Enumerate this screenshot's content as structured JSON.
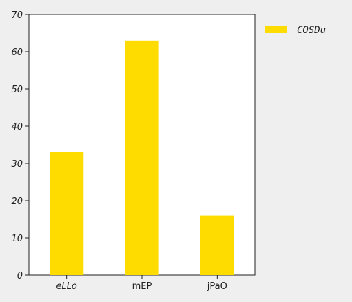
{
  "chart_data": {
    "type": "bar",
    "categories": [
      "eLLo",
      "mEP",
      "jPaO"
    ],
    "series": [
      {
        "name": "COSDu",
        "values": [
          33,
          63,
          16
        ]
      }
    ],
    "ylim": [
      0,
      70
    ],
    "yticks": [
      0,
      10,
      20,
      30,
      40,
      50,
      60,
      70
    ],
    "grid": false,
    "legend": "top-right, outside plot",
    "colors": {
      "bar": "#ffdc00",
      "background": "#efefef",
      "plot_background": "#ffffff",
      "axis": "#222222"
    }
  }
}
